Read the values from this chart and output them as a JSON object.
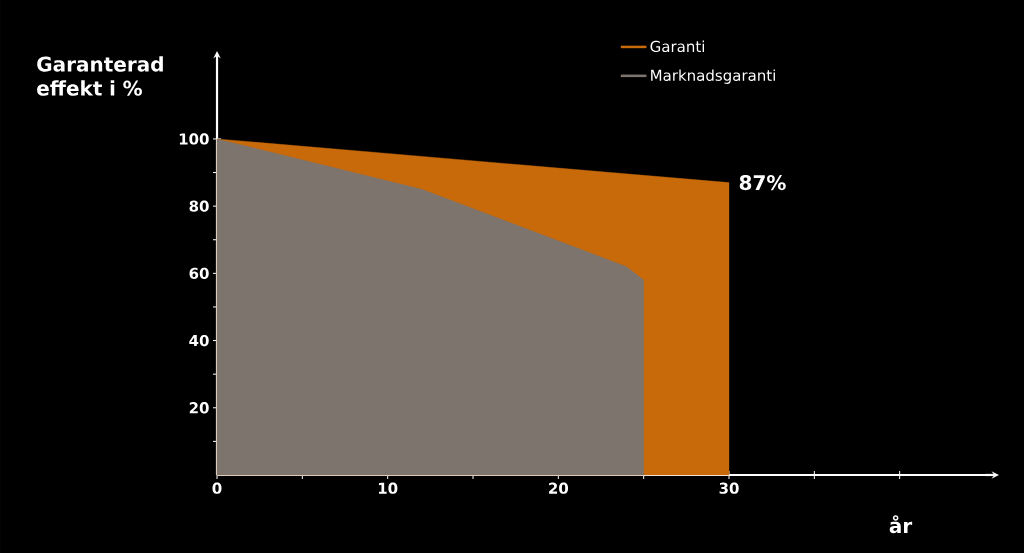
{
  "chart_data": {
    "type": "area",
    "xlabel": "år",
    "ylabel": "Garanterad effekt i %",
    "legend": "top right",
    "grid": false,
    "xlim": [
      0,
      45
    ],
    "ylim": [
      0,
      122
    ],
    "xticks": [
      0,
      {
        "value": 5,
        "label": null
      },
      10,
      {
        "value": 15,
        "label": null
      },
      20,
      {
        "value": 25,
        "label": null
      },
      30,
      {
        "value": 35,
        "label": null
      },
      {
        "value": 40,
        "label": null
      }
    ],
    "yticks": [
      {
        "value": 10,
        "label": null
      },
      20,
      {
        "value": 30,
        "label": null
      },
      40,
      {
        "value": 50,
        "label": null
      },
      60,
      {
        "value": 70,
        "label": null
      },
      80,
      {
        "value": 90,
        "label": null
      },
      100
    ],
    "annotations": [
      {
        "text": "87%",
        "x": 30,
        "y": 87
      }
    ],
    "series": [
      {
        "name": "Garanti",
        "color": "#c8690a",
        "x": [
          0,
          30,
          30
        ],
        "values": [
          100,
          87,
          0
        ]
      },
      {
        "name": "Marknadsgaranti",
        "color": "#7d756d",
        "x": [
          0,
          12,
          24,
          25,
          25
        ],
        "values": [
          100,
          85,
          62,
          58,
          0
        ]
      }
    ]
  }
}
